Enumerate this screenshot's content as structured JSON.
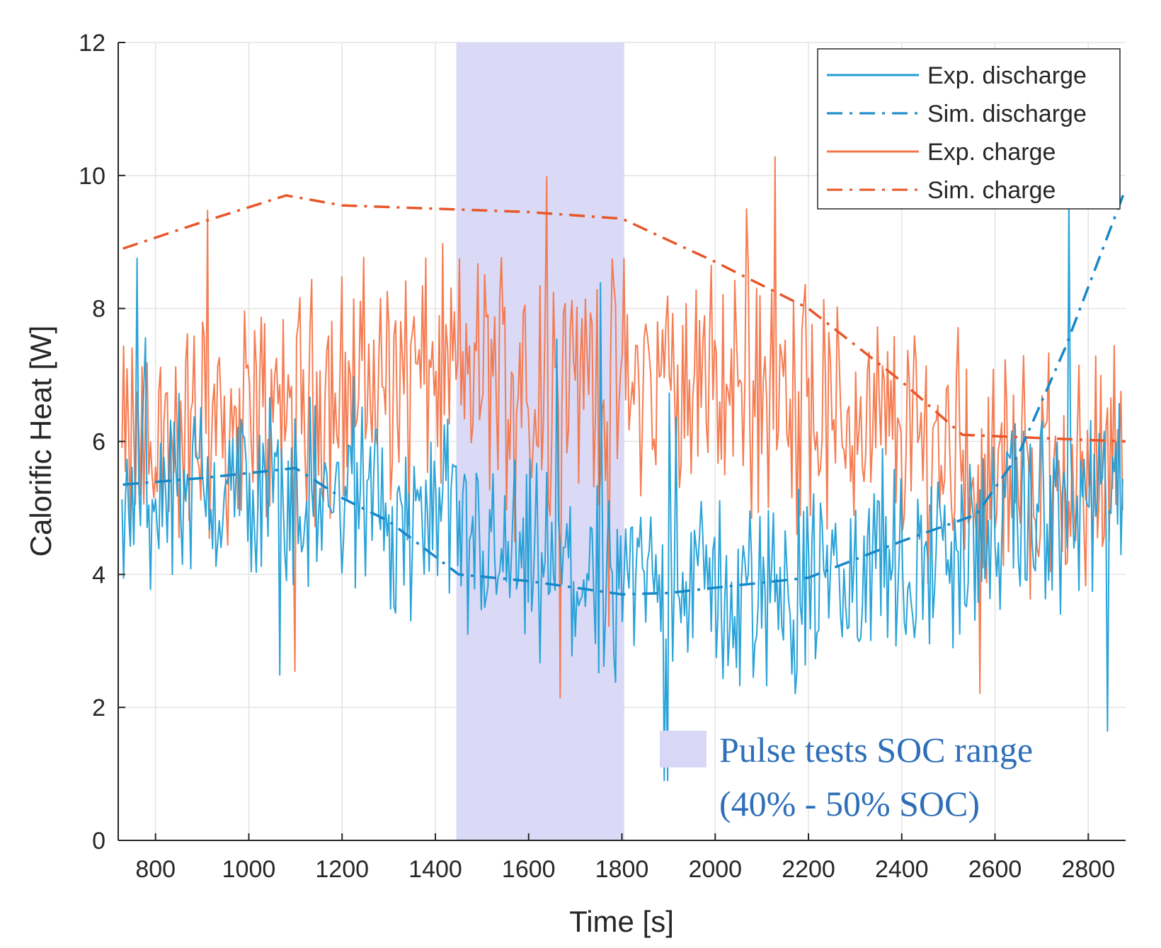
{
  "chart_data": {
    "type": "line",
    "title": "",
    "xlabel": "Time [s]",
    "ylabel": "Calorific Heat [W]",
    "xlim": [
      720,
      2880
    ],
    "ylim": [
      0,
      12
    ],
    "xticks": [
      800,
      1000,
      1200,
      1400,
      1600,
      1800,
      2000,
      2200,
      2400,
      2600,
      2800
    ],
    "yticks": [
      0,
      2,
      4,
      6,
      8,
      10,
      12
    ],
    "grid": true,
    "legend_position": "top-right",
    "colors": {
      "discharge": "#1f9ed6",
      "charge": "#f4764a",
      "sim_discharge": "#1688c8",
      "sim_charge": "#e8562a",
      "shade": "#d8d8f6"
    },
    "highlight_region": {
      "x_range": [
        1445,
        1805
      ],
      "label_line1": "Pulse tests SOC range",
      "label_line2": "(40% - 50% SOC)"
    },
    "series": [
      {
        "name": "Exp. discharge",
        "style": "solid",
        "noisy": true,
        "x": [
          730,
          850,
          1000,
          1100,
          1250,
          1400,
          1550,
          1700,
          1850,
          2000,
          2150,
          2300,
          2450,
          2600,
          2750,
          2880
        ],
        "values": [
          5.0,
          5.3,
          5.3,
          5.2,
          4.9,
          4.7,
          4.2,
          4.0,
          3.9,
          3.8,
          3.8,
          3.9,
          4.2,
          4.6,
          5.0,
          5.1
        ]
      },
      {
        "name": "Sim. discharge",
        "style": "dashdot",
        "x": [
          730,
          900,
          1100,
          1200,
          1300,
          1450,
          1600,
          1800,
          1900,
          2000,
          2200,
          2400,
          2500,
          2560,
          2650,
          2750,
          2880
        ],
        "values": [
          5.35,
          5.45,
          5.6,
          5.15,
          4.8,
          4.0,
          3.9,
          3.7,
          3.72,
          3.8,
          3.95,
          4.5,
          4.75,
          4.9,
          5.8,
          7.4,
          9.8
        ]
      },
      {
        "name": "Exp. charge",
        "style": "solid",
        "noisy": true,
        "x": [
          730,
          900,
          1100,
          1250,
          1400,
          1550,
          1700,
          1850,
          2000,
          2150,
          2300,
          2450,
          2600,
          2750,
          2880
        ],
        "values": [
          5.8,
          6.2,
          6.6,
          6.9,
          7.0,
          7.1,
          7.0,
          6.9,
          6.8,
          6.6,
          6.3,
          6.0,
          5.6,
          5.5,
          5.6
        ]
      },
      {
        "name": "Sim. charge",
        "style": "dashdot",
        "x": [
          730,
          900,
          1080,
          1200,
          1400,
          1600,
          1800,
          2000,
          2200,
          2400,
          2530,
          2700,
          2880
        ],
        "values": [
          8.9,
          9.3,
          9.7,
          9.55,
          9.5,
          9.45,
          9.35,
          8.7,
          8.0,
          6.9,
          6.1,
          6.05,
          6.0
        ]
      }
    ]
  }
}
